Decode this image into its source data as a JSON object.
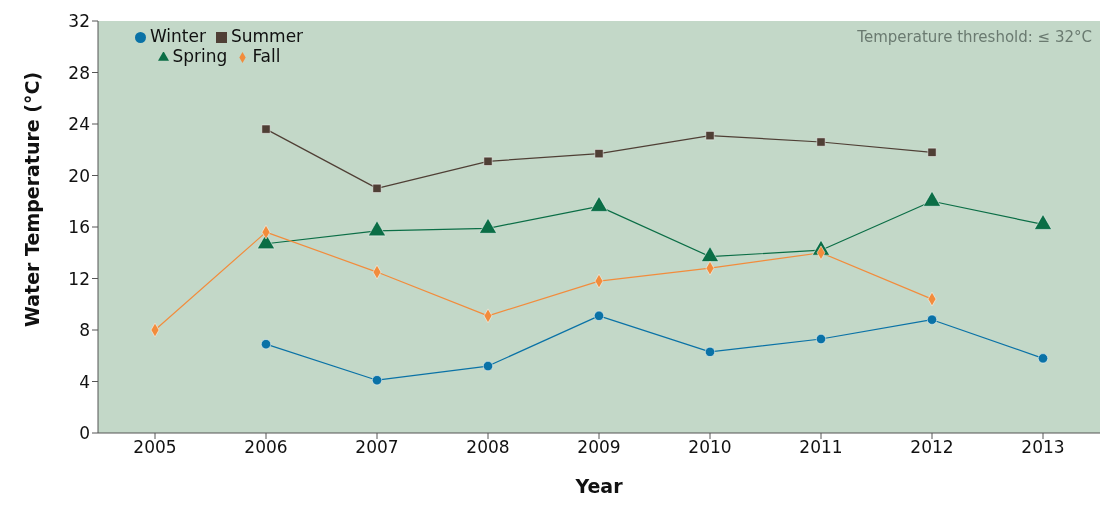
{
  "chart_data": {
    "type": "line",
    "categories": [
      "2005",
      "2006",
      "2007",
      "2008",
      "2009",
      "2010",
      "2011",
      "2012",
      "2013"
    ],
    "series": [
      {
        "name": "Winter",
        "color": "#0a72a6",
        "marker": "circle",
        "values": [
          null,
          6.9,
          4.1,
          5.2,
          9.1,
          6.3,
          7.3,
          8.8,
          5.8
        ]
      },
      {
        "name": "Summer",
        "color": "#4f3f35",
        "marker": "square",
        "values": [
          null,
          23.6,
          19.0,
          21.1,
          21.7,
          23.1,
          22.6,
          21.8,
          null
        ]
      },
      {
        "name": "Spring",
        "color": "#0b6e46",
        "marker": "triangle",
        "values": [
          null,
          14.7,
          15.7,
          15.9,
          17.6,
          13.7,
          14.2,
          18.0,
          16.2
        ]
      },
      {
        "name": "Fall",
        "color": "#f28c3c",
        "marker": "diamond",
        "values": [
          8.0,
          15.6,
          12.5,
          9.1,
          11.8,
          12.8,
          14.0,
          10.4,
          null
        ]
      }
    ],
    "xlabel": "Year",
    "ylabel": "Water Temperature (°C)",
    "ylim": [
      0,
      32
    ],
    "yticks": [
      0,
      4,
      8,
      12,
      16,
      20,
      24,
      28,
      32
    ],
    "annotations": [
      "Temperature threshold: ≤ 32°C"
    ],
    "legend": "top left"
  }
}
